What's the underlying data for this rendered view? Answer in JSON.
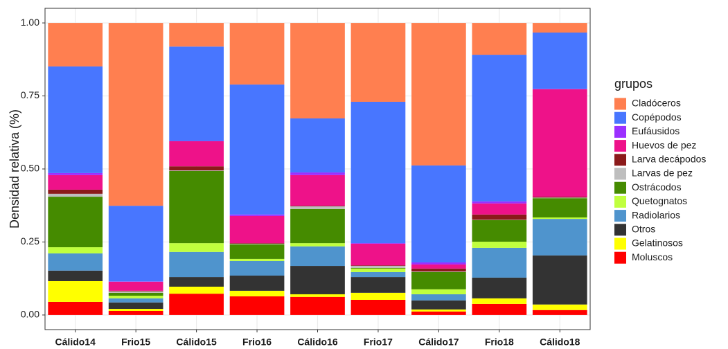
{
  "chart_data": {
    "type": "stacked_bar",
    "y_label": "Densidad relativa (%)",
    "legend_title": "grupos",
    "legend_position": "right",
    "grid": true,
    "categories": [
      "Cálido14",
      "Frio15",
      "Cálido15",
      "Frio16",
      "Cálido16",
      "Frio17",
      "Cálido17",
      "Frio18",
      "Cálido18"
    ],
    "ylim": [
      -0.05,
      1.05
    ],
    "yticks": [
      {
        "value": 0,
        "label": "0.00"
      },
      {
        "value": 0.25,
        "label": "0.25"
      },
      {
        "value": 0.5,
        "label": "0.50"
      },
      {
        "value": 0.75,
        "label": "0.75"
      },
      {
        "value": 1,
        "label": "1.00"
      }
    ],
    "series": [
      {
        "name": "Cladóceros",
        "color": "#FF7F50",
        "values": [
          0.149,
          0.626,
          0.081,
          0.211,
          0.327,
          0.27,
          0.488,
          0.109,
          0.033
        ]
      },
      {
        "name": "Copépodos",
        "color": "#4876FF",
        "values": [
          0.365,
          0.259,
          0.323,
          0.445,
          0.185,
          0.484,
          0.332,
          0.502,
          0.193
        ]
      },
      {
        "name": "Eufáusidos",
        "color": "#9B30FF",
        "values": [
          0.007,
          0.001,
          0.001,
          0.005,
          0.009,
          0.002,
          0.007,
          0.007,
          0.001
        ]
      },
      {
        "name": "Huevos de pez",
        "color": "#EE1289",
        "values": [
          0.05,
          0.031,
          0.086,
          0.093,
          0.105,
          0.074,
          0.014,
          0.038,
          0.368
        ]
      },
      {
        "name": "Larva decápodos",
        "color": "#8B1A1A",
        "values": [
          0.014,
          0.002,
          0.014,
          0.002,
          0.002,
          0.002,
          0.01,
          0.018,
          0.003
        ]
      },
      {
        "name": "Larvas de pez",
        "color": "#BEBEBE",
        "values": [
          0.01,
          0.005,
          0.002,
          0.002,
          0.009,
          0.007,
          0.002,
          0.001,
          0.002
        ]
      },
      {
        "name": "Ostrácodos",
        "color": "#458B00",
        "values": [
          0.173,
          0.01,
          0.247,
          0.05,
          0.117,
          0.002,
          0.059,
          0.074,
          0.066
        ]
      },
      {
        "name": "Quetognatos",
        "color": "#C0FF3E",
        "values": [
          0.021,
          0.009,
          0.03,
          0.007,
          0.011,
          0.012,
          0.017,
          0.021,
          0.005
        ]
      },
      {
        "name": "Radiolarios",
        "color": "#4F94CD",
        "values": [
          0.059,
          0.014,
          0.086,
          0.05,
          0.067,
          0.017,
          0.021,
          0.102,
          0.125
        ]
      },
      {
        "name": "Otros",
        "color": "#333333",
        "values": [
          0.036,
          0.022,
          0.033,
          0.052,
          0.097,
          0.054,
          0.031,
          0.071,
          0.168
        ]
      },
      {
        "name": "Gelatinosos",
        "color": "#FFFF00",
        "values": [
          0.071,
          0.007,
          0.024,
          0.019,
          0.009,
          0.024,
          0.007,
          0.019,
          0.019
        ]
      },
      {
        "name": "Moluscos",
        "color": "#FF0000",
        "values": [
          0.045,
          0.014,
          0.073,
          0.064,
          0.062,
          0.052,
          0.012,
          0.038,
          0.017
        ]
      }
    ]
  }
}
